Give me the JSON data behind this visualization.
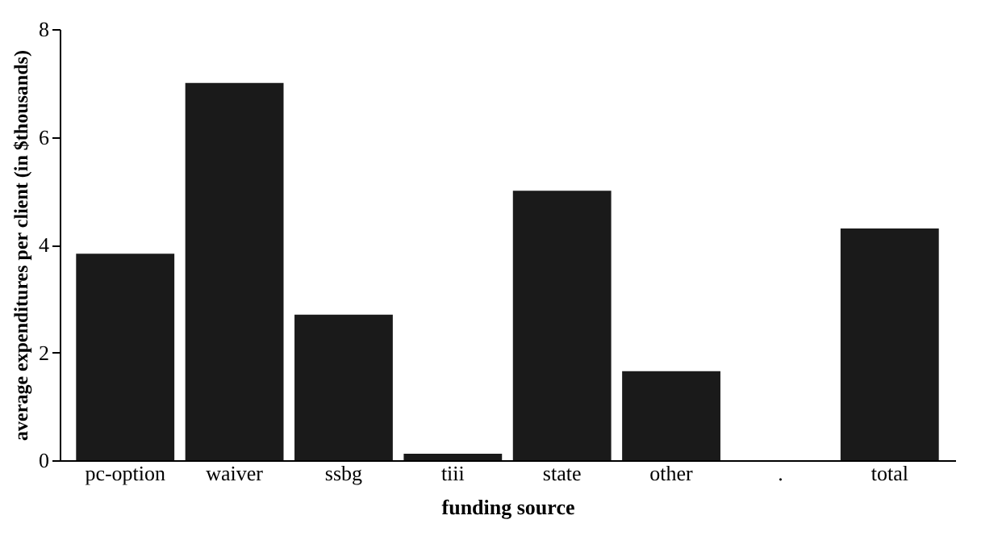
{
  "chart_data": {
    "type": "bar",
    "xlabel": "funding source",
    "ylabel": "average expenditures per client (in $thousands)",
    "categories": [
      "pc-option",
      "waiver",
      "ssbg",
      "tiii",
      "state",
      "other",
      ".",
      "total"
    ],
    "values": [
      3.83,
      7.0,
      2.7,
      0.12,
      5.0,
      1.65,
      0,
      4.3
    ],
    "color": "#1a1a1a",
    "ylim": [
      0,
      8
    ],
    "yticks": [
      0,
      2,
      4,
      6,
      8
    ],
    "grid": false
  }
}
